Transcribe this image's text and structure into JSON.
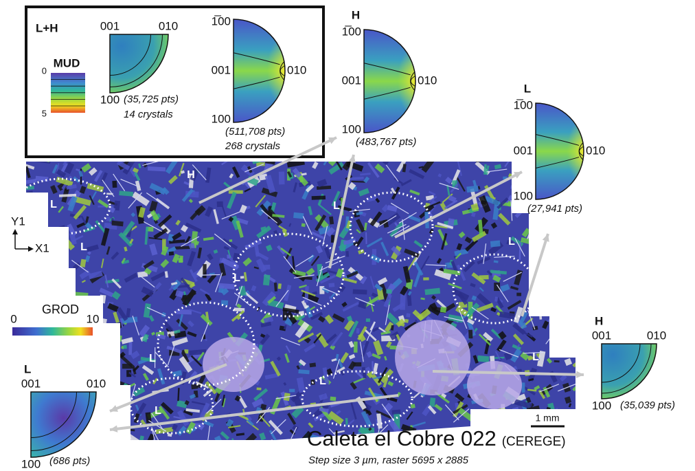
{
  "inset": {
    "group": "L+H",
    "mud_scale": {
      "title": "MUD",
      "min": "0",
      "max": "5"
    },
    "figures": [
      {
        "top": "001",
        "right": "010",
        "bottom": "100",
        "points": "(35,725 pts)",
        "crystals": "14 crystals"
      },
      {
        "top": "1̅00",
        "middle": "001",
        "right": "010",
        "bottom": "100",
        "points": "(511,708 pts)",
        "crystals": "268 crystals"
      }
    ]
  },
  "figures": [
    {
      "phase": "H",
      "top": "1̅00",
      "middle": "001",
      "right": "010",
      "bottom": "100",
      "points": "(483,767 pts)"
    },
    {
      "phase": "L",
      "top": "1̅00",
      "middle": "001",
      "right": "010",
      "bottom": "100",
      "points": "(27,941 pts)"
    },
    {
      "phase": "H",
      "top": "001",
      "right": "010",
      "bottom": "100",
      "points": "(35,039 pts)"
    },
    {
      "phase": "L",
      "top": "001",
      "right": "010",
      "bottom": "100",
      "points": "(686 pts)"
    }
  ],
  "map": {
    "labels": [
      "H",
      "L",
      "L",
      "L",
      "L",
      "L",
      "L",
      "L",
      "L",
      "L"
    ],
    "axes": {
      "y": "Y1",
      "x": "X1"
    },
    "grod_scale": {
      "title": "GROD",
      "min": "0",
      "max": "10"
    },
    "scale_bar": "1 mm"
  },
  "caption": {
    "title": "Caleta el Cobre 022",
    "source": "(CEREGE)",
    "subtitle": "Step size 3 µm, raster 5695 x 2885"
  }
}
